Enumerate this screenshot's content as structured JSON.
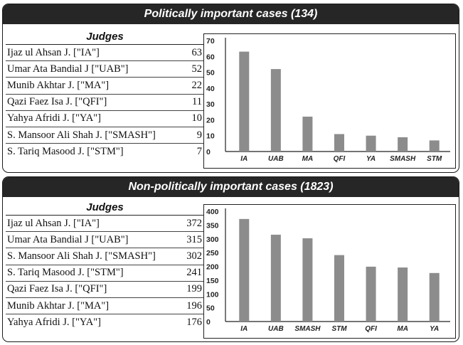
{
  "panels": [
    {
      "title": "Politically important cases (134)",
      "table_header": "Judges",
      "rows": [
        {
          "name": "Ijaz ul Ahsan J. [\"IA\"]",
          "value": "63"
        },
        {
          "name": "Umar Ata Bandial J [\"UAB\"]",
          "value": "52"
        },
        {
          "name": "Munib Akhtar J. [\"MA\"]",
          "value": "22"
        },
        {
          "name": "Qazi Faez Isa J. [\"QFI\"]",
          "value": "11"
        },
        {
          "name": "Yahya Afridi J. [\"YA\"]",
          "value": "10"
        },
        {
          "name": "S. Mansoor Ali Shah J. [\"SMASH\"]",
          "value": "9"
        },
        {
          "name": "S. Tariq Masood J. [\"STM\"]",
          "value": "7"
        }
      ]
    },
    {
      "title": "Non-politically important cases (1823)",
      "table_header": "Judges",
      "rows": [
        {
          "name": "Ijaz ul Ahsan J. [\"IA\"]",
          "value": "372"
        },
        {
          "name": "Umar Ata Bandial J [\"UAB\"]",
          "value": "315"
        },
        {
          "name": "S. Mansoor Ali Shah J. [\"SMASH\"]",
          "value": "302"
        },
        {
          "name": "S. Tariq Masood J. [\"STM\"]",
          "value": "241"
        },
        {
          "name": "Qazi Faez Isa J. [\"QFI\"]",
          "value": "199"
        },
        {
          "name": "Munib Akhtar J. [\"MA\"]",
          "value": "196"
        },
        {
          "name": "Yahya Afridi J. [\"YA\"]",
          "value": "176"
        }
      ]
    }
  ],
  "chart_data": [
    {
      "type": "bar",
      "categories": [
        "IA",
        "UAB",
        "MA",
        "QFI",
        "YA",
        "SMASH",
        "STM"
      ],
      "values": [
        63,
        52,
        22,
        11,
        10,
        9,
        7
      ],
      "ylim": [
        0,
        70
      ],
      "yticks": [
        0,
        10,
        20,
        30,
        40,
        50,
        60,
        70
      ],
      "grid": false,
      "bar_color": "#8c8c8c"
    },
    {
      "type": "bar",
      "categories": [
        "IA",
        "UAB",
        "SMASH",
        "STM",
        "QFI",
        "MA",
        "YA"
      ],
      "values": [
        372,
        315,
        302,
        241,
        199,
        196,
        176
      ],
      "ylim": [
        0,
        400
      ],
      "yticks": [
        0,
        50,
        100,
        150,
        200,
        250,
        300,
        350,
        400
      ],
      "grid": false,
      "bar_color": "#8c8c8c"
    }
  ],
  "colors": {
    "header_bg": "#262626",
    "header_text": "#ffffff",
    "bar": "#8c8c8c"
  }
}
